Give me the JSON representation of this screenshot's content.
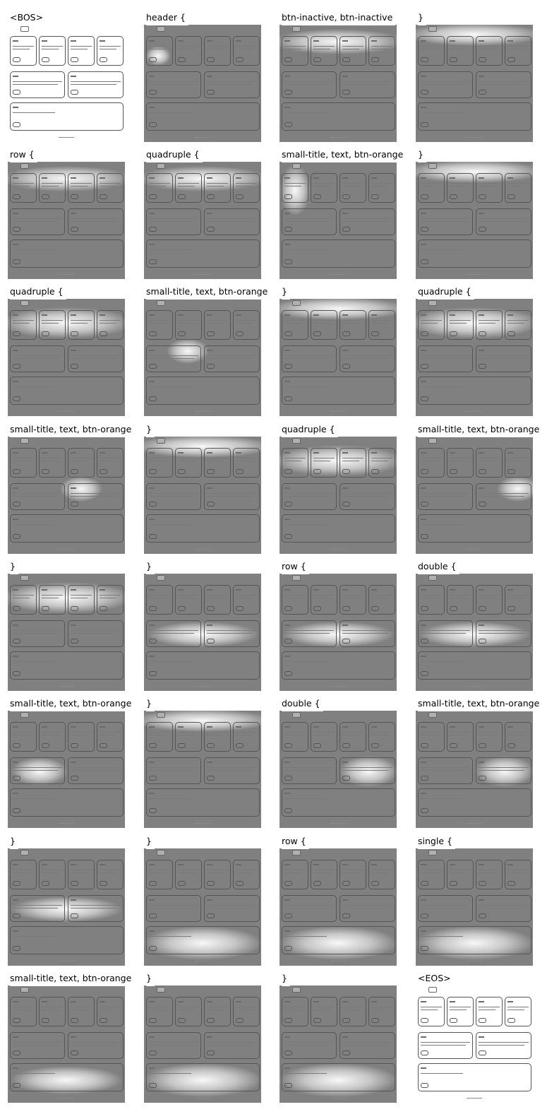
{
  "colors": {
    "shade": "#808080",
    "glow": "#ffffff",
    "ink": "#555555"
  },
  "cells": [
    {
      "label": "<BOS>",
      "focus": "none"
    },
    {
      "label": "header {",
      "focus": "hdr"
    },
    {
      "label": "btn-inactive, btn-inactive",
      "focus": "row1"
    },
    {
      "label": "}",
      "focus": "row1b"
    },
    {
      "label": "row {",
      "focus": "row1"
    },
    {
      "label": "quadruple {",
      "focus": "row1"
    },
    {
      "label": "small-title, text, btn-orange",
      "focus": "c1"
    },
    {
      "label": "}",
      "focus": "row1b"
    },
    {
      "label": "quadruple {",
      "focus": "row1c"
    },
    {
      "label": "small-title, text, btn-orange",
      "focus": "c2"
    },
    {
      "label": "}",
      "focus": "row1b"
    },
    {
      "label": "quadruple {",
      "focus": "row1c"
    },
    {
      "label": "small-title, text, btn-orange",
      "focus": "c3"
    },
    {
      "label": "}",
      "focus": "row1b"
    },
    {
      "label": "quadruple {",
      "focus": "row1c"
    },
    {
      "label": "small-title, text, btn-orange",
      "focus": "c4"
    },
    {
      "label": "}",
      "focus": "row1c"
    },
    {
      "label": "}",
      "focus": "row2"
    },
    {
      "label": "row {",
      "focus": "row2"
    },
    {
      "label": "double {",
      "focus": "row2"
    },
    {
      "label": "small-title, text, btn-orange",
      "focus": "d1"
    },
    {
      "label": "}",
      "focus": "row1b"
    },
    {
      "label": "double {",
      "focus": "d2"
    },
    {
      "label": "small-title, text, btn-orange",
      "focus": "d2"
    },
    {
      "label": "}",
      "focus": "row2"
    },
    {
      "label": "}",
      "focus": "row3"
    },
    {
      "label": "row {",
      "focus": "row3"
    },
    {
      "label": "single {",
      "focus": "row3"
    },
    {
      "label": "small-title, text, btn-orange",
      "focus": "s1"
    },
    {
      "label": "}",
      "focus": "row3"
    },
    {
      "label": "}",
      "focus": "row3"
    },
    {
      "label": "<EOS>",
      "focus": "none"
    }
  ]
}
